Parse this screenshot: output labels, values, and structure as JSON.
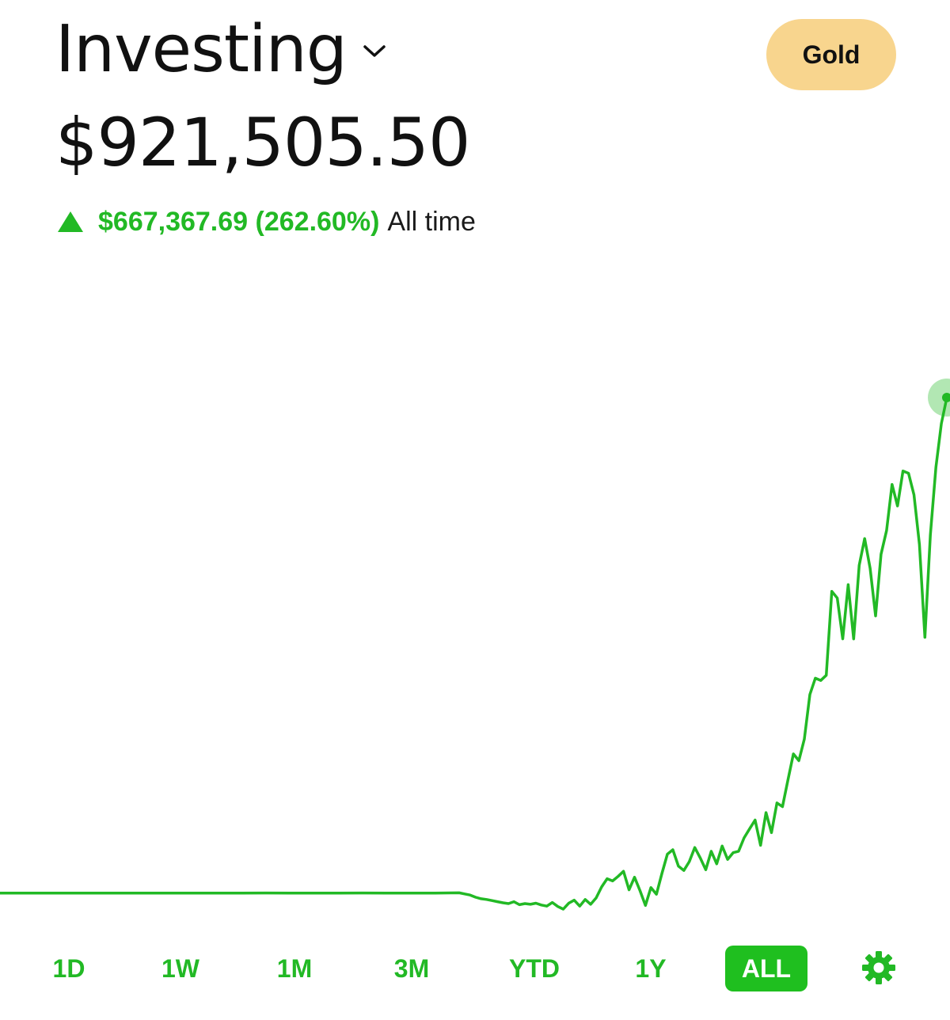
{
  "header": {
    "title": "Investing",
    "dropdown_icon": "chevron-down-icon",
    "gold_button_label": "Gold"
  },
  "portfolio": {
    "balance": "$921,505.50",
    "change_amount": "$667,367.69 (262.60%)",
    "change_period": "All time",
    "change_icon": "triangle-up-icon"
  },
  "colors": {
    "accent_green": "#22b925",
    "gold_button": "#f8d58e",
    "active_tab_bg": "#1fbf1f",
    "background": "#ffffff"
  },
  "range_tabs": [
    {
      "label": "1D",
      "active": false
    },
    {
      "label": "1W",
      "active": false
    },
    {
      "label": "1M",
      "active": false
    },
    {
      "label": "3M",
      "active": false
    },
    {
      "label": "YTD",
      "active": false
    },
    {
      "label": "1Y",
      "active": false
    },
    {
      "label": "ALL",
      "active": true
    }
  ],
  "settings_icon": "gear-icon",
  "chart_data": {
    "type": "line",
    "title": "",
    "xlabel": "",
    "ylabel": "",
    "grid": false,
    "values": [
      254138,
      254138,
      254200,
      254138,
      254100,
      254138,
      254000,
      254200,
      254138,
      254100,
      254138,
      254300,
      254138,
      254200,
      254100,
      254300,
      254138,
      254200,
      254138,
      254500,
      253000,
      251500,
      248500,
      246500,
      245500,
      244000,
      242500,
      241000,
      240000,
      242500,
      238500,
      240000,
      239000,
      240500,
      238000,
      236500,
      241500,
      236000,
      232500,
      240500,
      244500,
      236500,
      245500,
      239000,
      247500,
      262500,
      273500,
      270500,
      276500,
      283500,
      258500,
      275500,
      257500,
      237500,
      261500,
      252500,
      280500,
      306500,
      312500,
      290500,
      284500,
      296500,
      315500,
      301500,
      285500,
      310500,
      293500,
      317500,
      299500,
      308500,
      310500,
      328500,
      340500,
      352500,
      318500,
      362500,
      335500,
      375500,
      370500,
      406500,
      441500,
      432500,
      461500,
      521500,
      543500,
      540500,
      547500,
      660500,
      651500,
      596500,
      669500,
      596500,
      695500,
      731500,
      691500,
      627500,
      710500,
      742500,
      804500,
      775500,
      822500,
      819500,
      790500,
      723500,
      598500,
      736500,
      827500,
      886500,
      921505
    ]
  }
}
